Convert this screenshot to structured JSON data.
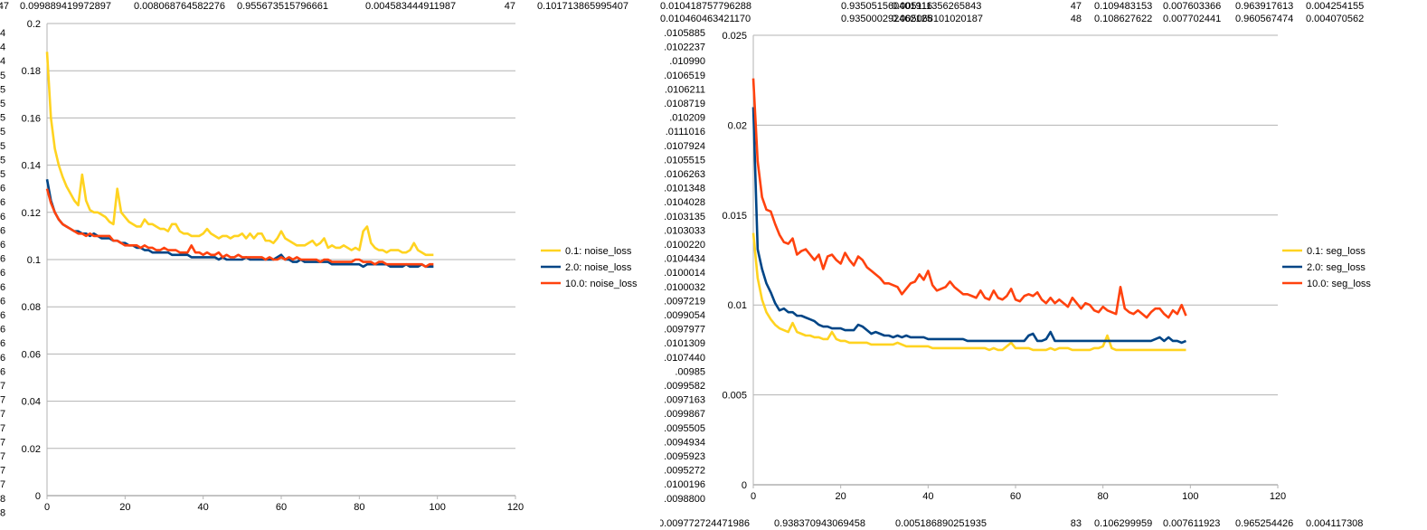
{
  "sheet": {
    "top_row": [
      "47",
      "0.099889419972897",
      "0.008068764582276",
      "0.955673515796661",
      "0.004583444911987",
      "47",
      "0.101713865995407",
      "0.010418757796288",
      "0.935051560401916",
      "0.005111356265843",
      "47",
      "0.109483153",
      "0.007603366",
      "0.963917613",
      "0.004254155"
    ],
    "second_row_partial": [
      "0.010460463421170",
      "0.935000292462125",
      "0.005068101020187",
      "48",
      "0.108627622",
      "0.007702441",
      "0.960567474",
      "0.004070562"
    ],
    "bottom_row": [
      "0.009772724471986",
      "0.938370943069458",
      "0.005186890251935",
      "83",
      "0.106299959",
      "0.007611923",
      "0.965254426",
      "0.004117308"
    ],
    "left_column_digits": [
      "4",
      "4",
      "4",
      "5",
      "5",
      "5",
      "5",
      "5",
      "5",
      "5",
      "5",
      "6",
      "6",
      "6",
      "6",
      "6",
      "6",
      "6",
      "6",
      "6",
      "6",
      "6",
      "6",
      "6",
      "6",
      "7",
      "7",
      "7",
      "7",
      "7",
      "7",
      "7",
      "7",
      "8",
      "8"
    ],
    "middle_column": [
      ".0105885",
      ".0102237",
      ".010990",
      ".0106519",
      ".0106211",
      ".0108719",
      ".010209",
      ".0111016",
      ".0107924",
      ".0105515",
      ".0106263",
      ".0101348",
      ".0104028",
      ".0103135",
      ".0103033",
      ".0100220",
      ".0104434",
      ".0100014",
      ".0100032",
      ".0097219",
      ".0099054",
      ".0097977",
      ".0101309",
      ".0107440",
      ".00985",
      ".0099582",
      ".0097163",
      ".0099867",
      ".0095505",
      ".0094934",
      ".0095923",
      ".0095272",
      ".0100196",
      ".0098800"
    ]
  },
  "chart_data": [
    {
      "type": "line",
      "title": "",
      "xlabel": "",
      "ylabel": "",
      "xlim": [
        0,
        120
      ],
      "ylim": [
        0,
        0.2
      ],
      "x_ticks": [
        "0",
        "20",
        "40",
        "60",
        "80",
        "100",
        "120"
      ],
      "y_ticks": [
        "0",
        "0.02",
        "0.04",
        "0.06",
        "0.08",
        "0.1",
        "0.12",
        "0.14",
        "0.16",
        "0.18",
        "0.2"
      ],
      "grid": "horizontal",
      "legend_position": "right",
      "x_start": 0,
      "series": [
        {
          "name": "0.1: noise_loss",
          "color": "#FFD320",
          "values": [
            0.188,
            0.16,
            0.147,
            0.14,
            0.135,
            0.131,
            0.128,
            0.125,
            0.123,
            0.136,
            0.125,
            0.121,
            0.12,
            0.12,
            0.119,
            0.118,
            0.116,
            0.115,
            0.13,
            0.12,
            0.118,
            0.116,
            0.115,
            0.114,
            0.114,
            0.117,
            0.115,
            0.115,
            0.114,
            0.113,
            0.113,
            0.112,
            0.115,
            0.115,
            0.112,
            0.111,
            0.111,
            0.11,
            0.11,
            0.11,
            0.111,
            0.113,
            0.111,
            0.11,
            0.109,
            0.11,
            0.11,
            0.109,
            0.11,
            0.11,
            0.111,
            0.109,
            0.111,
            0.109,
            0.111,
            0.111,
            0.108,
            0.108,
            0.107,
            0.109,
            0.112,
            0.109,
            0.108,
            0.107,
            0.106,
            0.106,
            0.106,
            0.107,
            0.108,
            0.106,
            0.107,
            0.109,
            0.105,
            0.106,
            0.105,
            0.105,
            0.106,
            0.105,
            0.104,
            0.105,
            0.104,
            0.112,
            0.114,
            0.107,
            0.105,
            0.104,
            0.104,
            0.103,
            0.104,
            0.104,
            0.104,
            0.103,
            0.103,
            0.104,
            0.107,
            0.104,
            0.103,
            0.102,
            0.102,
            0.102
          ]
        },
        {
          "name": "2.0: noise_loss",
          "color": "#004586",
          "values": [
            0.134,
            0.125,
            0.12,
            0.117,
            0.115,
            0.114,
            0.113,
            0.112,
            0.112,
            0.111,
            0.111,
            0.11,
            0.111,
            0.11,
            0.109,
            0.109,
            0.109,
            0.108,
            0.108,
            0.107,
            0.107,
            0.106,
            0.106,
            0.105,
            0.105,
            0.104,
            0.104,
            0.103,
            0.103,
            0.103,
            0.103,
            0.103,
            0.102,
            0.102,
            0.102,
            0.102,
            0.102,
            0.101,
            0.101,
            0.101,
            0.101,
            0.101,
            0.101,
            0.101,
            0.1,
            0.101,
            0.1,
            0.1,
            0.1,
            0.1,
            0.1,
            0.101,
            0.1,
            0.1,
            0.1,
            0.1,
            0.1,
            0.1,
            0.1,
            0.101,
            0.102,
            0.1,
            0.1,
            0.099,
            0.099,
            0.1,
            0.099,
            0.099,
            0.099,
            0.099,
            0.099,
            0.099,
            0.099,
            0.098,
            0.098,
            0.098,
            0.098,
            0.098,
            0.098,
            0.098,
            0.098,
            0.097,
            0.098,
            0.098,
            0.098,
            0.098,
            0.098,
            0.098,
            0.097,
            0.097,
            0.097,
            0.097,
            0.098,
            0.097,
            0.097,
            0.097,
            0.098,
            0.097,
            0.097,
            0.097
          ]
        },
        {
          "name": "10.0: noise_loss",
          "color": "#FF420E",
          "values": [
            0.13,
            0.124,
            0.12,
            0.117,
            0.115,
            0.114,
            0.113,
            0.112,
            0.111,
            0.111,
            0.11,
            0.111,
            0.11,
            0.11,
            0.11,
            0.11,
            0.11,
            0.108,
            0.108,
            0.107,
            0.106,
            0.106,
            0.106,
            0.106,
            0.105,
            0.106,
            0.105,
            0.105,
            0.104,
            0.104,
            0.105,
            0.104,
            0.104,
            0.104,
            0.103,
            0.103,
            0.103,
            0.106,
            0.103,
            0.103,
            0.102,
            0.103,
            0.102,
            0.102,
            0.103,
            0.101,
            0.102,
            0.101,
            0.101,
            0.102,
            0.101,
            0.101,
            0.101,
            0.101,
            0.101,
            0.101,
            0.1,
            0.101,
            0.1,
            0.1,
            0.101,
            0.1,
            0.101,
            0.1,
            0.101,
            0.1,
            0.1,
            0.1,
            0.1,
            0.1,
            0.099,
            0.1,
            0.1,
            0.099,
            0.099,
            0.099,
            0.099,
            0.099,
            0.099,
            0.1,
            0.1,
            0.099,
            0.099,
            0.099,
            0.098,
            0.099,
            0.099,
            0.098,
            0.098,
            0.098,
            0.098,
            0.098,
            0.098,
            0.098,
            0.098,
            0.098,
            0.098,
            0.097,
            0.098,
            0.098
          ]
        }
      ]
    },
    {
      "type": "line",
      "title": "",
      "xlabel": "",
      "ylabel": "",
      "xlim": [
        0,
        120
      ],
      "ylim": [
        0,
        0.025
      ],
      "x_ticks": [
        "0",
        "20",
        "40",
        "60",
        "80",
        "100",
        "120"
      ],
      "y_ticks": [
        "0",
        "0.005",
        "0.01",
        "0.015",
        "0.02",
        "0.025"
      ],
      "grid": "horizontal",
      "legend_position": "right",
      "x_start": 0,
      "series": [
        {
          "name": "0.1: seg_loss",
          "color": "#FFD320",
          "values": [
            0.014,
            0.0115,
            0.0103,
            0.0096,
            0.0092,
            0.0089,
            0.0087,
            0.0086,
            0.0085,
            0.009,
            0.0085,
            0.0084,
            0.0083,
            0.0083,
            0.0082,
            0.0082,
            0.0081,
            0.0081,
            0.0085,
            0.0081,
            0.008,
            0.008,
            0.0079,
            0.0079,
            0.0079,
            0.0079,
            0.0079,
            0.0078,
            0.0078,
            0.0078,
            0.0078,
            0.0078,
            0.0078,
            0.0079,
            0.0078,
            0.0077,
            0.0077,
            0.0077,
            0.0077,
            0.0077,
            0.0077,
            0.0076,
            0.0076,
            0.0076,
            0.0076,
            0.0076,
            0.0076,
            0.0076,
            0.0076,
            0.0076,
            0.0076,
            0.0076,
            0.0076,
            0.0076,
            0.0075,
            0.0076,
            0.0075,
            0.0075,
            0.0077,
            0.0079,
            0.0076,
            0.0076,
            0.0076,
            0.0076,
            0.0075,
            0.0075,
            0.0075,
            0.0075,
            0.0076,
            0.0075,
            0.0076,
            0.0076,
            0.0076,
            0.0075,
            0.0075,
            0.0075,
            0.0075,
            0.0075,
            0.0076,
            0.0076,
            0.0077,
            0.0083,
            0.0076,
            0.0075,
            0.0075,
            0.0075,
            0.0075,
            0.0075,
            0.0075,
            0.0075,
            0.0075,
            0.0075,
            0.0075,
            0.0075,
            0.0075,
            0.0075,
            0.0075,
            0.0075,
            0.0075,
            0.0075
          ]
        },
        {
          "name": "2.0: seg_loss",
          "color": "#004586",
          "values": [
            0.021,
            0.0131,
            0.012,
            0.0112,
            0.0107,
            0.0101,
            0.0097,
            0.0098,
            0.0096,
            0.0096,
            0.0094,
            0.0094,
            0.0093,
            0.0092,
            0.0091,
            0.0089,
            0.0088,
            0.0088,
            0.0087,
            0.0087,
            0.0087,
            0.0086,
            0.0086,
            0.0086,
            0.0089,
            0.0088,
            0.0086,
            0.0084,
            0.0085,
            0.0084,
            0.0083,
            0.0083,
            0.0082,
            0.0083,
            0.0082,
            0.0083,
            0.0082,
            0.0082,
            0.0082,
            0.0082,
            0.0081,
            0.0081,
            0.0081,
            0.0081,
            0.0081,
            0.0081,
            0.0081,
            0.0081,
            0.0081,
            0.008,
            0.008,
            0.008,
            0.008,
            0.008,
            0.008,
            0.008,
            0.008,
            0.008,
            0.008,
            0.008,
            0.008,
            0.008,
            0.008,
            0.0083,
            0.0084,
            0.008,
            0.008,
            0.0081,
            0.0085,
            0.008,
            0.008,
            0.008,
            0.008,
            0.008,
            0.008,
            0.008,
            0.008,
            0.008,
            0.008,
            0.008,
            0.008,
            0.008,
            0.008,
            0.008,
            0.008,
            0.008,
            0.008,
            0.008,
            0.008,
            0.008,
            0.008,
            0.008,
            0.0081,
            0.0082,
            0.008,
            0.0082,
            0.008,
            0.008,
            0.0079,
            0.008
          ]
        },
        {
          "name": "10.0: seg_loss",
          "color": "#FF420E",
          "values": [
            0.0226,
            0.018,
            0.016,
            0.0153,
            0.0152,
            0.0145,
            0.0139,
            0.0135,
            0.0134,
            0.0137,
            0.0128,
            0.013,
            0.0131,
            0.0128,
            0.0125,
            0.0128,
            0.012,
            0.0127,
            0.0128,
            0.0125,
            0.0123,
            0.0129,
            0.0125,
            0.0122,
            0.0127,
            0.0125,
            0.0121,
            0.0119,
            0.0117,
            0.0115,
            0.0112,
            0.0112,
            0.0111,
            0.011,
            0.0106,
            0.0109,
            0.0112,
            0.0113,
            0.0117,
            0.0114,
            0.0119,
            0.0111,
            0.0108,
            0.0109,
            0.011,
            0.0113,
            0.011,
            0.0108,
            0.0106,
            0.0106,
            0.0105,
            0.0104,
            0.0108,
            0.0104,
            0.0103,
            0.0108,
            0.0104,
            0.0103,
            0.0105,
            0.0109,
            0.0103,
            0.0102,
            0.0105,
            0.0106,
            0.0105,
            0.0107,
            0.0103,
            0.0101,
            0.0104,
            0.0101,
            0.0103,
            0.0101,
            0.0099,
            0.0104,
            0.0101,
            0.0098,
            0.0101,
            0.01,
            0.0097,
            0.0096,
            0.0099,
            0.0097,
            0.0096,
            0.0095,
            0.011,
            0.0098,
            0.0096,
            0.0095,
            0.0097,
            0.0095,
            0.0093,
            0.0096,
            0.0098,
            0.0098,
            0.0095,
            0.0093,
            0.0097,
            0.0095,
            0.01,
            0.0094
          ]
        }
      ]
    }
  ]
}
